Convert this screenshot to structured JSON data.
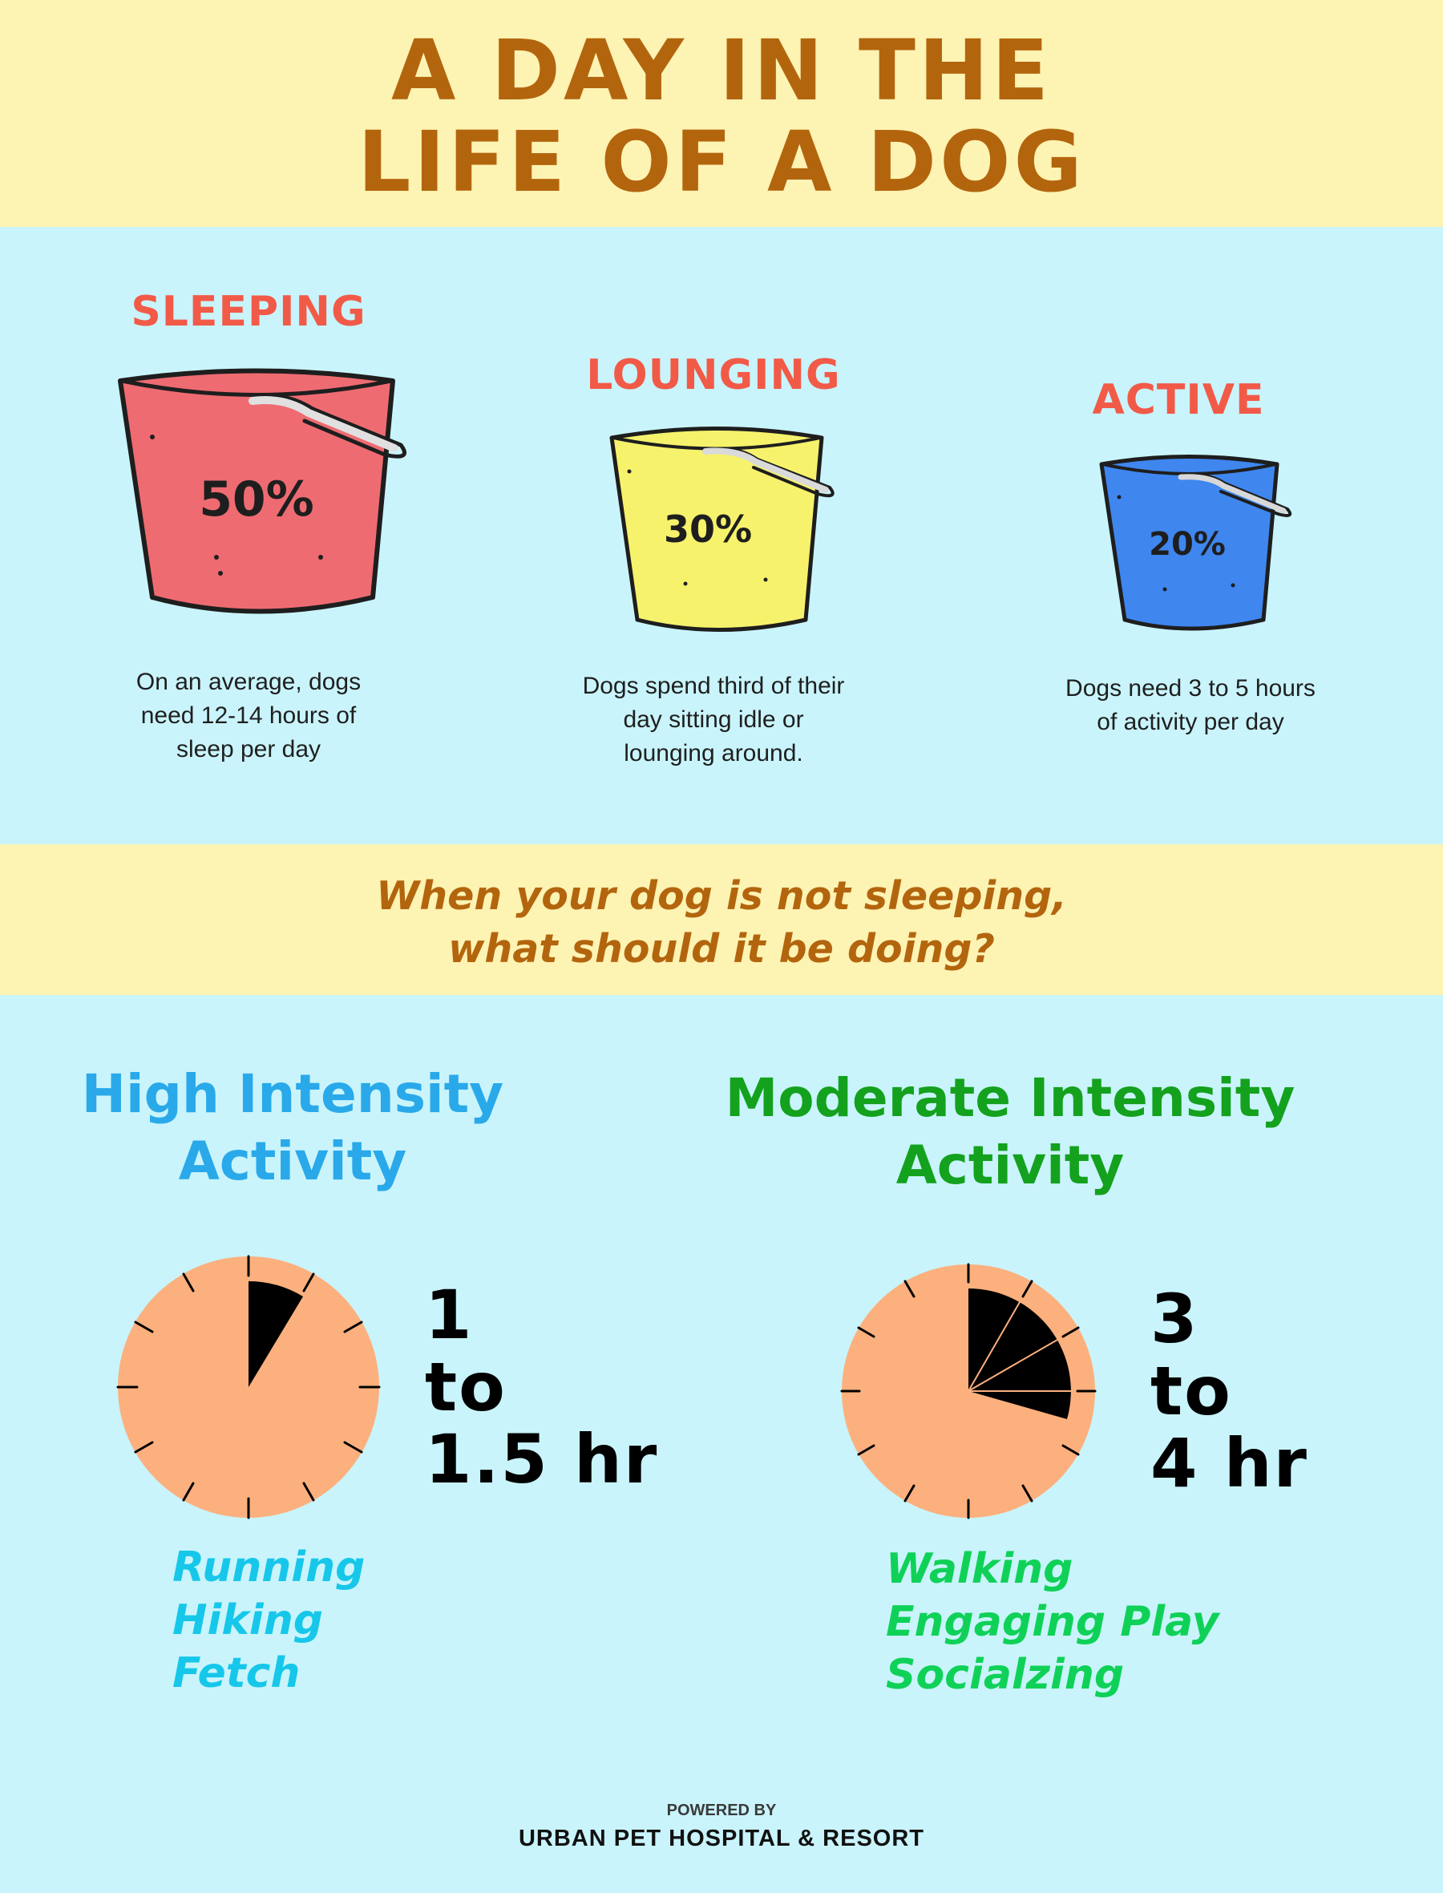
{
  "header": {
    "title_line1": "A DAY IN THE",
    "title_line2": "LIFE OF A DOG"
  },
  "buckets": [
    {
      "title": "SLEEPING",
      "percent": "50%",
      "color": "#ef6b72",
      "desc_lines": [
        "On an average, dogs",
        "need 12-14 hours of",
        "sleep per day"
      ]
    },
    {
      "title": "LOUNGING",
      "percent": "30%",
      "color": "#f6f26c",
      "desc_lines": [
        "Dogs spend third of their",
        "day sitting idle or",
        "lounging around."
      ]
    },
    {
      "title": "ACTIVE",
      "percent": "20%",
      "color": "#3f86ef",
      "desc_lines": [
        "Dogs need 3 to 5 hours",
        "of activity per day"
      ]
    }
  ],
  "question": {
    "line1": "When your dog is not sleeping,",
    "line2": "what should it be doing?"
  },
  "high": {
    "title_line1": "High Intensity",
    "title_line2": "Activity",
    "hours": [
      "1",
      "to",
      "1.5 hr"
    ],
    "activities": [
      "Running",
      "Hiking",
      "Fetch"
    ],
    "color": "#29a9ea"
  },
  "moderate": {
    "title_line1": "Moderate Intensity",
    "title_line2": "Activity",
    "hours": [
      "3",
      "to",
      "4 hr"
    ],
    "activities": [
      "Walking",
      "Engaging Play",
      "Socialzing"
    ],
    "color": "#14a11e"
  },
  "footer": {
    "powered_by": "POWERED BY",
    "brand": "URBAN PET HOSPITAL & RESORT"
  },
  "colors": {
    "cream": "#fdf3b3",
    "sky": "#c9f4fb",
    "brown": "#b3650e",
    "coral": "#f25a48",
    "clock_face": "#fcb07e"
  }
}
